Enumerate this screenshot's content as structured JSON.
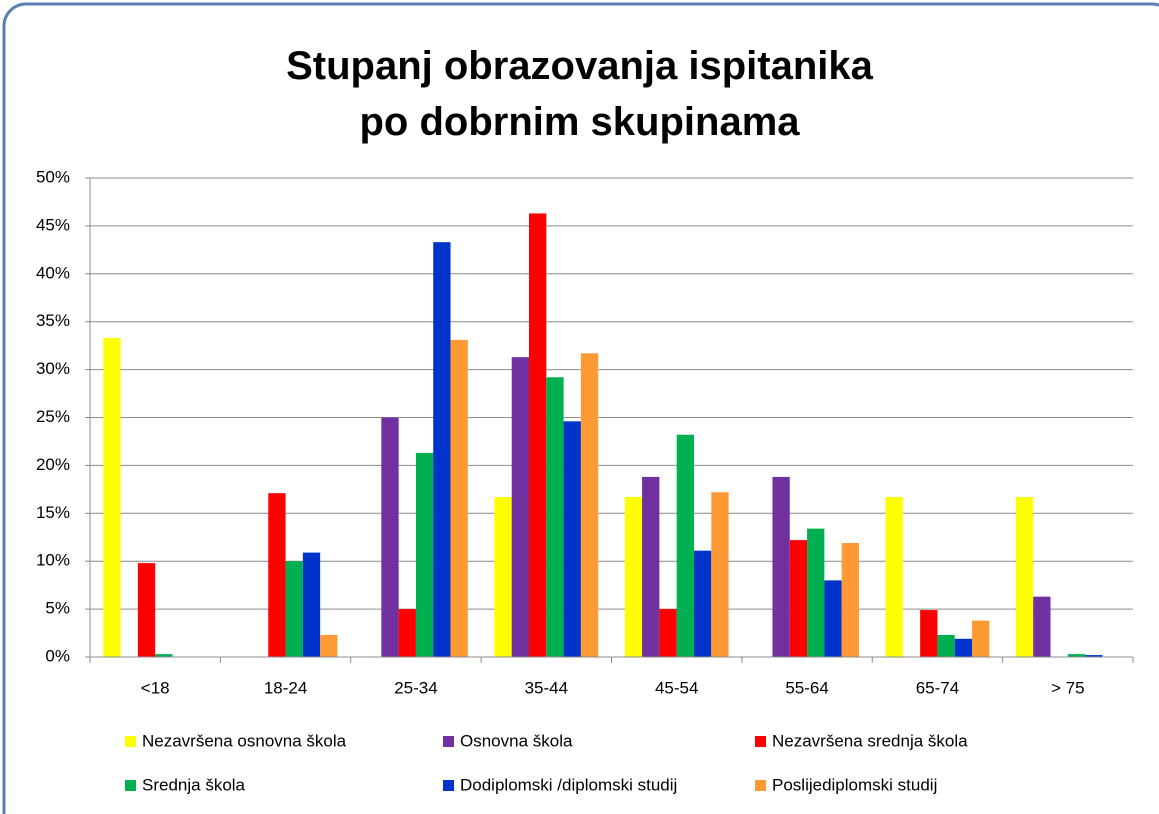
{
  "chart_data": {
    "type": "bar",
    "title": "Stupanj obrazovanja ispitanika po dobrnim skupinama",
    "categories": [
      "<18",
      "18-24",
      "25-34",
      "35-44",
      "45-54",
      "55-64",
      "65-74",
      "> 75"
    ],
    "series": [
      {
        "name": "Nezavršena osnovna škola",
        "color": "#ffff00",
        "values": [
          33.3,
          0,
          0,
          16.7,
          16.7,
          0,
          16.7,
          16.7
        ]
      },
      {
        "name": "Osnovna škola",
        "color": "#7030a0",
        "values": [
          0,
          0,
          25.0,
          31.3,
          18.8,
          18.8,
          0,
          6.3
        ]
      },
      {
        "name": "Nezavršena srednja škola",
        "color": "#ff0000",
        "values": [
          9.8,
          17.1,
          5.0,
          46.3,
          5.0,
          12.2,
          4.9,
          0
        ]
      },
      {
        "name": "Srednja škola",
        "color": "#00b050",
        "values": [
          0.3,
          10.0,
          21.3,
          29.2,
          23.2,
          13.4,
          2.3,
          0.3
        ]
      },
      {
        "name": "Dodiplomski /diplomski studij",
        "color": "#0033cc",
        "values": [
          0,
          10.9,
          43.3,
          24.6,
          11.1,
          8.0,
          1.9,
          0.2
        ]
      },
      {
        "name": "Poslijediplomski studij",
        "color": "#ff9933",
        "values": [
          0,
          2.3,
          33.1,
          31.7,
          17.2,
          11.9,
          3.8,
          0
        ]
      }
    ],
    "ylim": [
      0,
      50
    ],
    "yticks": [
      {
        "value": 0,
        "label": "0%"
      },
      {
        "value": 5,
        "label": "5%"
      },
      {
        "value": 10,
        "label": "10%"
      },
      {
        "value": 15,
        "label": "15%"
      },
      {
        "value": 20,
        "label": "20%"
      },
      {
        "value": 25,
        "label": "25%"
      },
      {
        "value": 30,
        "label": "30%"
      },
      {
        "value": 35,
        "label": "35%"
      },
      {
        "value": 40,
        "label": "40%"
      },
      {
        "value": 45,
        "label": "45%"
      },
      {
        "value": 50,
        "label": "50%"
      }
    ],
    "grid": true,
    "legend": "bottom"
  }
}
